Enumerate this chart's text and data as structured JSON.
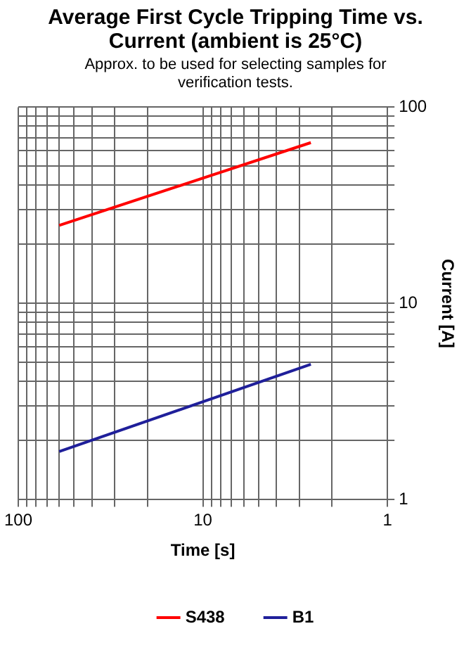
{
  "chart_data": {
    "type": "line",
    "title": "Average First Cycle Tripping Time vs. Current (ambient is 25°C)",
    "subtitle": "Approx. to be used for selecting samples for verification tests.",
    "xlabel": "Time [s]",
    "ylabel": "Current [A]",
    "log": "xy",
    "xlim": [
      100,
      1
    ],
    "ylim": [
      1,
      100
    ],
    "xticks": [
      100,
      {
        "value": 90,
        "label": null
      },
      {
        "value": 80,
        "label": null
      },
      {
        "value": 70,
        "label": null
      },
      {
        "value": 60,
        "label": null
      },
      {
        "value": 50,
        "label": null
      },
      {
        "value": 40,
        "label": null
      },
      {
        "value": 30,
        "label": null
      },
      {
        "value": 20,
        "label": null
      },
      10,
      {
        "value": 9,
        "label": null
      },
      {
        "value": 8,
        "label": null
      },
      {
        "value": 7,
        "label": null
      },
      {
        "value": 6,
        "label": null
      },
      {
        "value": 5,
        "label": null
      },
      {
        "value": 4,
        "label": null
      },
      {
        "value": 3,
        "label": null
      },
      {
        "value": 2,
        "label": null
      },
      1
    ],
    "yticks": [
      1,
      {
        "value": 2,
        "label": null
      },
      {
        "value": 3,
        "label": null
      },
      {
        "value": 4,
        "label": null
      },
      {
        "value": 5,
        "label": null
      },
      {
        "value": 6,
        "label": null
      },
      {
        "value": 7,
        "label": null
      },
      {
        "value": 8,
        "label": null
      },
      {
        "value": 9,
        "label": null
      },
      10,
      {
        "value": 20,
        "label": null
      },
      {
        "value": 30,
        "label": null
      },
      {
        "value": 40,
        "label": null
      },
      {
        "value": 50,
        "label": null
      },
      {
        "value": 60,
        "label": null
      },
      {
        "value": 70,
        "label": null
      },
      {
        "value": 80,
        "label": null
      },
      {
        "value": 90,
        "label": null
      },
      100
    ],
    "x": [
      60,
      2.6
    ],
    "grid": true,
    "legend": "bottom",
    "marker": "none",
    "line_style": "solid",
    "series": [
      {
        "name": "S438",
        "color": "#ff0000",
        "values": [
          25,
          66
        ]
      },
      {
        "name": "B1",
        "color": "#1f1f9a",
        "values": [
          1.76,
          4.9
        ]
      }
    ]
  }
}
